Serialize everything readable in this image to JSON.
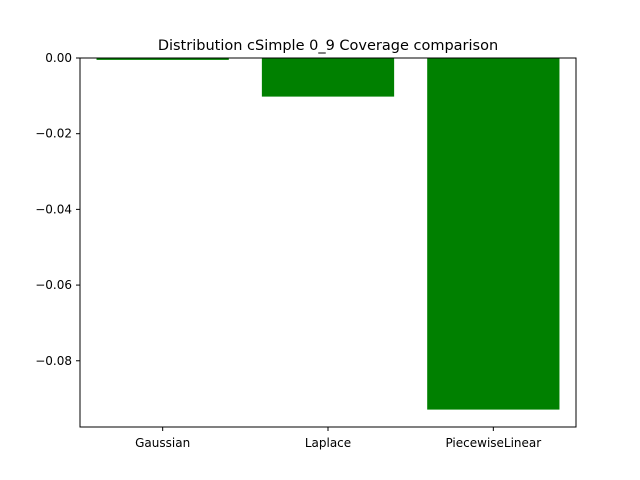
{
  "chart_data": {
    "type": "bar",
    "title": "Distribution cSimple 0_9 Coverage comparison",
    "xlabel": "",
    "ylabel": "",
    "categories": [
      "Gaussian",
      "Laplace",
      "PiecewiseLinear"
    ],
    "values": [
      -0.0005,
      -0.0102,
      -0.0929
    ],
    "ylim": [
      -0.0975,
      0.0
    ],
    "yticks": [
      0.0,
      -0.02,
      -0.04,
      -0.06,
      -0.08
    ],
    "ytick_labels": [
      "0.00",
      "−0.02",
      "−0.04",
      "−0.06",
      "−0.08"
    ],
    "bar_color": "#008000",
    "grid": false,
    "legend": "none"
  }
}
